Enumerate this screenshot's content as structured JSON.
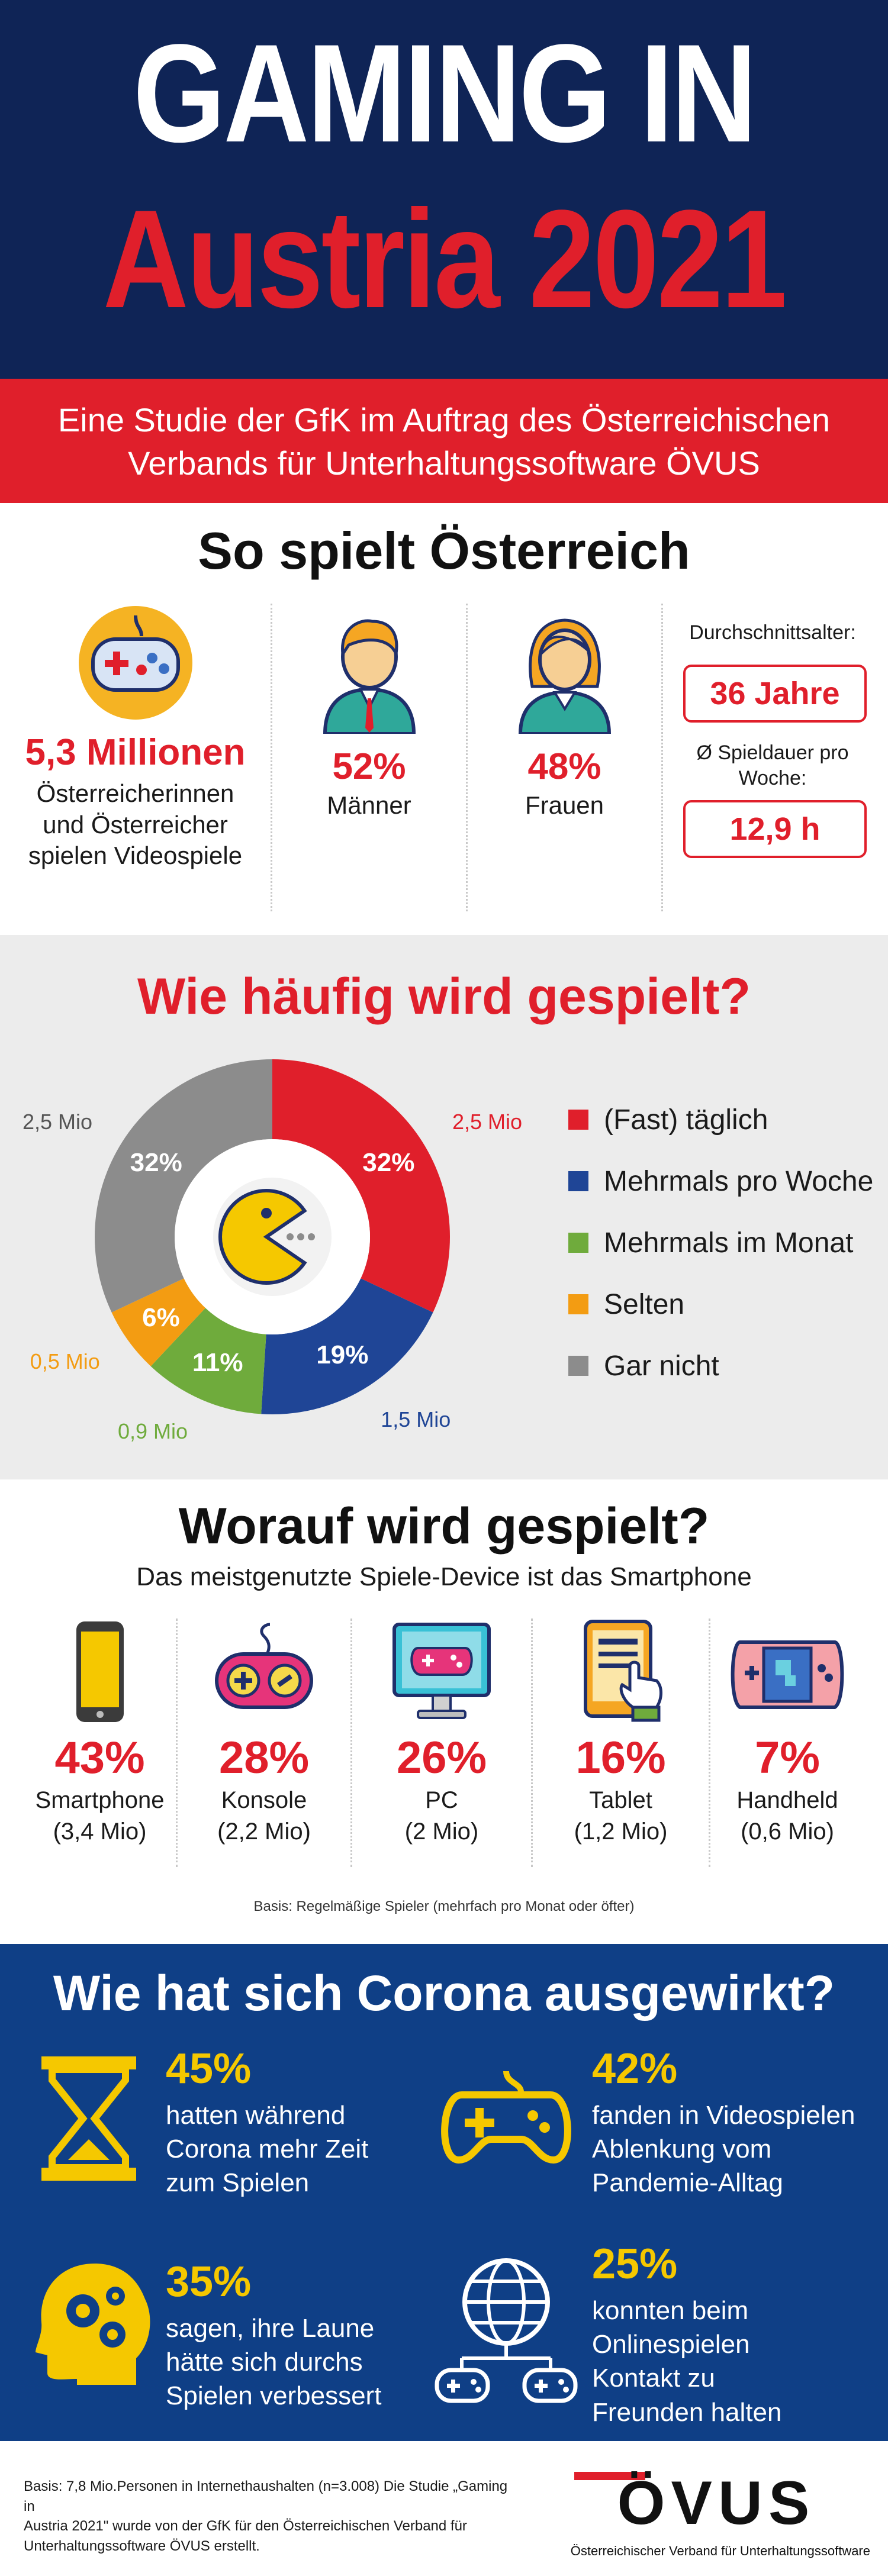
{
  "header": {
    "line1": "GAMING IN",
    "line2": "Austria 2021",
    "subtitle_line1": "Eine Studie der GfK im Auftrag des Österreichischen",
    "subtitle_line2": "Verbands für Unterhaltungssoftware ÖVUS"
  },
  "overview": {
    "title": "So spielt Österreich",
    "players_value": "5,3 Millionen",
    "players_text_1": "Österreicherinnen",
    "players_text_2": "und Österreicher",
    "players_text_3": "spielen Videospiele",
    "male_pct": "52%",
    "male_label": "Männer",
    "female_pct": "48%",
    "female_label": "Frauen",
    "avg_age_label": "Durchschnittsalter:",
    "avg_age_value": "36 Jahre",
    "playtime_label_1": "Ø Spieldauer pro",
    "playtime_label_2": "Woche:",
    "playtime_value": "12,9 h"
  },
  "frequency": {
    "title": "Wie häufig wird gespielt?",
    "chart_data": {
      "type": "pie",
      "title": "Wie häufig wird gespielt?",
      "slices": [
        {
          "name": "(Fast) täglich",
          "value": 32,
          "label": "32%",
          "mio": "2,5 Mio",
          "color": "#e01f2b"
        },
        {
          "name": "Mehrmals pro Woche",
          "value": 19,
          "label": "19%",
          "mio": "1,5 Mio",
          "color": "#1f4596"
        },
        {
          "name": "Mehrmals im Monat",
          "value": 11,
          "label": "11%",
          "mio": "0,9 Mio",
          "color": "#6fab3c"
        },
        {
          "name": "Selten",
          "value": 6,
          "label": "6%",
          "mio": "0,5 Mio",
          "color": "#f39c12"
        },
        {
          "name": "Gar nicht",
          "value": 32,
          "label": "32%",
          "mio": "2,5 Mio",
          "color": "#8c8c8c"
        }
      ],
      "legend_position": "right"
    }
  },
  "devices": {
    "title": "Worauf wird gespielt?",
    "subtitle": "Das meistgenutzte Spiele-Device ist das Smartphone",
    "items": [
      {
        "name": "Smartphone",
        "pct": "43%",
        "mio": "(3,4 Mio)",
        "icon": "smartphone-icon"
      },
      {
        "name": "Konsole",
        "pct": "28%",
        "mio": "(2,2 Mio)",
        "icon": "gamepad-icon"
      },
      {
        "name": "PC",
        "pct": "26%",
        "mio": "(2 Mio)",
        "icon": "monitor-icon"
      },
      {
        "name": "Tablet",
        "pct": "16%",
        "mio": "(1,2 Mio)",
        "icon": "tablet-icon"
      },
      {
        "name": "Handheld",
        "pct": "7%",
        "mio": "(0,6 Mio)",
        "icon": "handheld-icon"
      }
    ],
    "basis": "Basis: Regelmäßige Spieler (mehrfach pro Monat oder öfter)"
  },
  "corona": {
    "title": "Wie hat sich Corona ausgewirkt?",
    "items": [
      {
        "pct": "45%",
        "lines": [
          "hatten während",
          "Corona mehr Zeit",
          "zum Spielen"
        ],
        "icon": "hourglass-icon"
      },
      {
        "pct": "42%",
        "lines": [
          "fanden in Videospielen",
          "Ablenkung vom",
          "Pandemie-Alltag"
        ],
        "icon": "gamepad-icon"
      },
      {
        "pct": "35%",
        "lines": [
          "sagen, ihre Laune",
          "hätte sich durchs",
          "Spielen verbessert"
        ],
        "icon": "head-gears-icon"
      },
      {
        "pct": "25%",
        "lines": [
          "konnten beim",
          "Onlinespielen",
          "Kontakt zu",
          "Freunden halten"
        ],
        "icon": "globe-network-icon"
      }
    ]
  },
  "footer": {
    "basis_line1": "Basis: 7,8 Mio.Personen in Internethaushalten (n=3.008) Die Studie „Gaming in",
    "basis_line2": "Austria 2021\" wurde von der GfK für den Österreichischen Verband für",
    "basis_line3": "Unterhaltungssoftware ÖVUS erstellt.",
    "logo_text": "ÖVUS",
    "logo_subtitle": "Österreichischer Verband für Unterhaltungssoftware"
  }
}
